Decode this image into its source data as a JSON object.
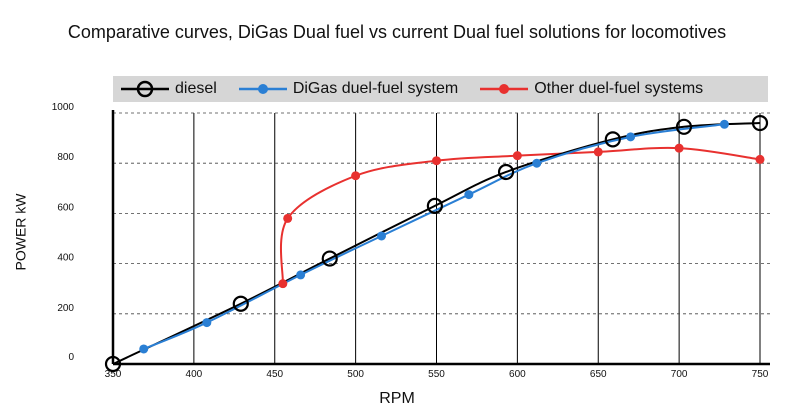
{
  "chart_data": {
    "type": "line",
    "title": "Comparative curves, DiGas Dual fuel vs current Dual fuel solutions for locomotives",
    "xlabel": "RPM",
    "ylabel": "POWER kW",
    "xlim": [
      350,
      750
    ],
    "ylim": [
      0,
      1000
    ],
    "x_ticks": [
      350,
      400,
      450,
      500,
      550,
      600,
      650,
      700,
      750
    ],
    "y_ticks": [
      0,
      200,
      400,
      600,
      800,
      1000
    ],
    "grid": true,
    "legend_position": "top",
    "series": [
      {
        "name": "diesel",
        "color": "#000000",
        "marker": "open-circle",
        "x": [
          350,
          429,
          484,
          549,
          593,
          659,
          703,
          750
        ],
        "y": [
          0,
          240,
          420,
          630,
          765,
          895,
          945,
          960
        ]
      },
      {
        "name": "DiGas duel-fuel system",
        "color": "#2a7fd4",
        "marker": "filled-circle",
        "x": [
          369,
          408,
          466,
          516,
          570,
          612,
          670,
          728
        ],
        "y": [
          60,
          165,
          355,
          510,
          675,
          800,
          905,
          955
        ]
      },
      {
        "name": "Other duel-fuel systems",
        "color": "#e8312f",
        "marker": "filled-circle",
        "x": [
          455,
          458,
          500,
          550,
          600,
          650,
          700,
          750
        ],
        "y": [
          320,
          580,
          750,
          810,
          830,
          845,
          860,
          815
        ]
      }
    ]
  }
}
